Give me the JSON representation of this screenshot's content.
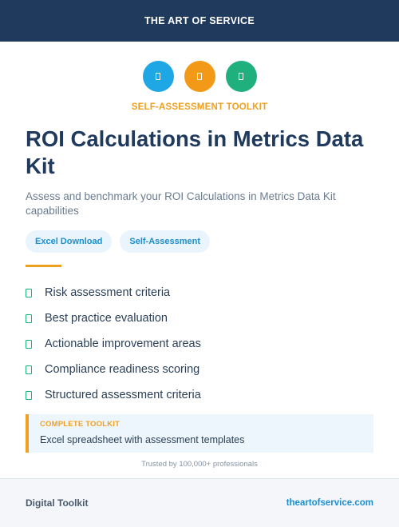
{
  "header": {
    "brand": "THE ART OF SERVICE"
  },
  "icons": [
    {
      "name": "doc-icon",
      "color": "#1ea7e4"
    },
    {
      "name": "doc-icon",
      "color": "#f29a18"
    },
    {
      "name": "doc-icon",
      "color": "#1fb07e"
    }
  ],
  "kicker": "SELF-ASSESSMENT TOOLKIT",
  "title": "ROI Calculations in Metrics Data Kit",
  "subtitle": "Assess and benchmark your ROI Calculations in Metrics Data Kit capabilities",
  "tags": [
    "Excel Download",
    "Self-Assessment"
  ],
  "features": [
    "Risk assessment criteria",
    "Best practice evaluation",
    "Actionable improvement areas",
    "Compliance readiness scoring",
    "Structured assessment criteria"
  ],
  "callout": {
    "label": "COMPLETE TOOLKIT",
    "text": "Excel spreadsheet with assessment templates"
  },
  "trusted": "Trusted by 100,000+ professionals",
  "footer": {
    "left": "Digital Toolkit",
    "right": "theartofservice.com"
  },
  "colors": {
    "navy": "#1f3a5c",
    "accent_orange": "#f0a020",
    "accent_blue": "#1a8fd0",
    "accent_green": "#20b27a"
  }
}
